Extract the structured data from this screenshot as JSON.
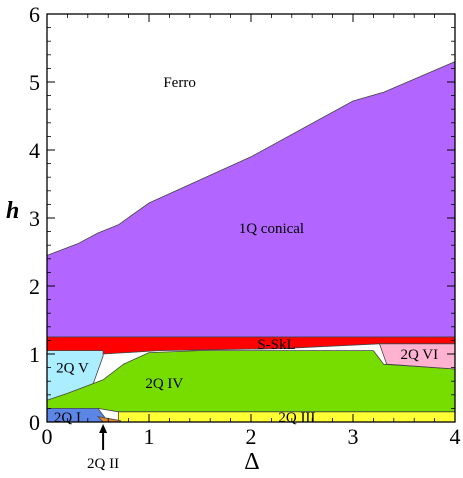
{
  "chart_data": {
    "type": "area",
    "title": "",
    "xlabel": "Δ",
    "ylabel": "h",
    "xlim": [
      0,
      4
    ],
    "ylim": [
      0,
      6
    ],
    "x_ticks": [
      "0",
      "1",
      "2",
      "3",
      "4"
    ],
    "y_ticks": [
      "0",
      "1",
      "2",
      "3",
      "4",
      "5",
      "6"
    ],
    "regions": [
      {
        "name": "1Q conical",
        "color": "#b266ff",
        "polygon": [
          [
            0,
            2.45
          ],
          [
            0.3,
            2.62
          ],
          [
            0.5,
            2.78
          ],
          [
            0.7,
            2.9
          ],
          [
            1.0,
            3.22
          ],
          [
            2.0,
            3.9
          ],
          [
            3.0,
            4.72
          ],
          [
            3.3,
            4.85
          ],
          [
            4.0,
            5.3
          ],
          [
            4.0,
            1.25
          ],
          [
            0,
            1.25
          ]
        ]
      },
      {
        "name": "S-SkL",
        "color": "#ff0000",
        "polygon": [
          [
            0,
            1.25
          ],
          [
            4.0,
            1.25
          ],
          [
            4.0,
            1.15
          ],
          [
            3.26,
            1.15
          ],
          [
            2.3,
            1.08
          ],
          [
            1.1,
            1.05
          ],
          [
            0.55,
            1.0
          ],
          [
            0,
            1.0
          ]
        ]
      },
      {
        "name": "2Q V",
        "color": "#aaeeff",
        "polygon": [
          [
            0,
            1.05
          ],
          [
            0.55,
            1.05
          ],
          [
            0.55,
            0.97
          ],
          [
            0.45,
            0.55
          ],
          [
            0.2,
            0.35
          ],
          [
            0,
            0.3
          ]
        ]
      },
      {
        "name": "2Q IV",
        "color": "#77dd00",
        "polygon": [
          [
            0,
            0.32
          ],
          [
            0.2,
            0.42
          ],
          [
            0.55,
            0.62
          ],
          [
            0.75,
            0.85
          ],
          [
            1.0,
            1.02
          ],
          [
            1.5,
            1.05
          ],
          [
            3.2,
            1.05
          ],
          [
            3.3,
            0.85
          ],
          [
            4.0,
            0.78
          ],
          [
            4.0,
            0.15
          ],
          [
            0.7,
            0.15
          ],
          [
            0.5,
            0.2
          ],
          [
            0,
            0.2
          ]
        ]
      },
      {
        "name": "2Q VI",
        "color": "#ffb3d1",
        "polygon": [
          [
            3.26,
            1.15
          ],
          [
            4.0,
            1.15
          ],
          [
            4.0,
            0.78
          ],
          [
            3.33,
            0.85
          ]
        ]
      },
      {
        "name": "2Q III",
        "color": "#ffff33",
        "polygon": [
          [
            0.7,
            0.15
          ],
          [
            4.0,
            0.15
          ],
          [
            4.0,
            0
          ],
          [
            0.7,
            0
          ]
        ]
      },
      {
        "name": "2Q I",
        "color": "#5b86e5",
        "polygon": [
          [
            0,
            0.2
          ],
          [
            0.5,
            0.2
          ],
          [
            0.55,
            0.1
          ],
          [
            0.6,
            0
          ],
          [
            0,
            0
          ]
        ]
      },
      {
        "name": "2Q II",
        "color": "#e0882a",
        "polygon": [
          [
            0.5,
            0.08
          ],
          [
            0.72,
            0.02
          ],
          [
            0.72,
            0
          ],
          [
            0.55,
            0
          ]
        ]
      }
    ],
    "region_labels": [
      {
        "text": "Ferro",
        "x": 1.3,
        "y": 5.0
      },
      {
        "text": "1Q conical",
        "x": 2.2,
        "y": 2.85
      },
      {
        "text": "S-SkL",
        "x": 2.25,
        "y": 1.15
      },
      {
        "text": "2Q VI",
        "x": 3.65,
        "y": 1.0
      },
      {
        "text": "2Q V",
        "x": 0.25,
        "y": 0.8
      },
      {
        "text": "2Q IV",
        "x": 1.15,
        "y": 0.57
      },
      {
        "text": "2Q III",
        "x": 2.45,
        "y": 0.07
      },
      {
        "text": "2Q I",
        "x": 0.2,
        "y": 0.07
      }
    ],
    "callout": {
      "text": "2Q II",
      "x": 0.55,
      "y": 0.0
    }
  },
  "colors": {
    "axis": "#000000",
    "boundary": "#444444",
    "background": "#ffffff"
  }
}
